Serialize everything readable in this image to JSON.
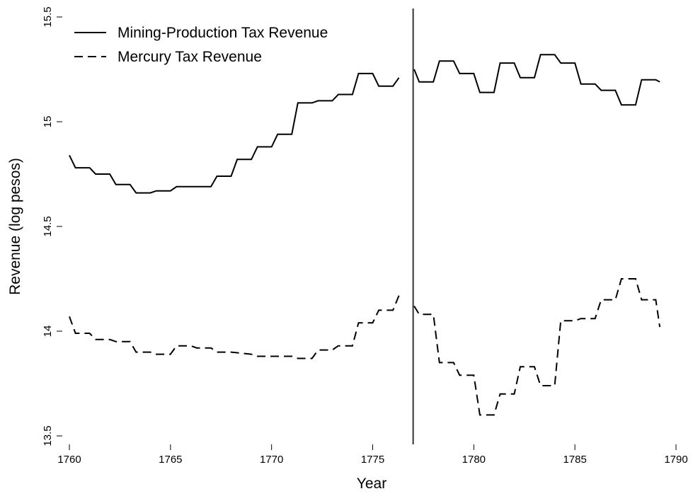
{
  "chart_data": {
    "type": "line",
    "xlabel": "Year",
    "ylabel": "Revenue (log pesos)",
    "xlim": [
      1760,
      1790
    ],
    "xticks": [
      1760,
      1765,
      1770,
      1775,
      1780,
      1785,
      1790
    ],
    "ylim": [
      13.5,
      15.5
    ],
    "yticks": [
      13.5,
      14,
      14.5,
      15,
      15.5
    ],
    "vline": 1777,
    "legend": "upper left",
    "grid": false,
    "series": [
      {
        "name": "Mining-Production Tax Revenue",
        "color": "#000000",
        "dash": "solid",
        "x": [
          1760,
          1760.3,
          1761,
          1761.3,
          1762,
          1762.3,
          1763,
          1763.3,
          1764,
          1764.3,
          1765,
          1765.3,
          1766,
          1767,
          1767.3,
          1768,
          1768.3,
          1769,
          1769.3,
          1770,
          1770.3,
          1771,
          1771.3,
          1772,
          1772.3,
          1773,
          1773.3,
          1774,
          1774.3,
          1775,
          1775.3,
          1776,
          1776.3,
          1777,
          1777.05,
          1777.3,
          1778,
          1778.3,
          1779,
          1779.3,
          1780,
          1780.3,
          1781,
          1781.3,
          1782,
          1782.3,
          1783,
          1783.3,
          1784,
          1784.3,
          1785,
          1785.3,
          1786,
          1786.3,
          1787,
          1787.3,
          1788,
          1788.3,
          1789,
          1789.2
        ],
        "values": [
          14.84,
          14.78,
          14.78,
          14.75,
          14.75,
          14.7,
          14.7,
          14.66,
          14.66,
          14.67,
          14.67,
          14.69,
          14.69,
          14.69,
          14.74,
          14.74,
          14.82,
          14.82,
          14.88,
          14.88,
          14.94,
          14.94,
          15.09,
          15.09,
          15.1,
          15.1,
          15.13,
          15.13,
          15.23,
          15.23,
          15.17,
          15.17,
          15.21,
          null,
          15.25,
          15.19,
          15.19,
          15.29,
          15.29,
          15.23,
          15.23,
          15.14,
          15.14,
          15.28,
          15.28,
          15.21,
          15.21,
          15.32,
          15.32,
          15.28,
          15.28,
          15.18,
          15.18,
          15.15,
          15.15,
          15.08,
          15.08,
          15.2,
          15.2,
          15.19
        ]
      },
      {
        "name": "Mercury Tax Revenue",
        "color": "#000000",
        "dash": "dashed",
        "x": [
          1760,
          1760.3,
          1761,
          1761.3,
          1762,
          1762.3,
          1763,
          1763.3,
          1764,
          1764.3,
          1765,
          1765.3,
          1766,
          1766.3,
          1767,
          1767.3,
          1768,
          1769,
          1769.3,
          1770,
          1771,
          1771.3,
          1772,
          1772.3,
          1773,
          1773.3,
          1774,
          1774.3,
          1775,
          1775.3,
          1776,
          1776.3,
          1777,
          1777.05,
          1777.3,
          1778,
          1778.3,
          1779,
          1779.3,
          1780,
          1780.3,
          1781,
          1781.3,
          1782,
          1782.3,
          1783,
          1783.3,
          1784,
          1784.3,
          1785,
          1785.3,
          1786,
          1786.3,
          1787,
          1787.3,
          1788,
          1788.3,
          1789,
          1789.2
        ],
        "values": [
          14.07,
          13.99,
          13.99,
          13.96,
          13.96,
          13.95,
          13.95,
          13.9,
          13.9,
          13.89,
          13.89,
          13.93,
          13.93,
          13.92,
          13.92,
          13.9,
          13.9,
          13.89,
          13.88,
          13.88,
          13.88,
          13.87,
          13.87,
          13.91,
          13.91,
          13.93,
          13.93,
          14.04,
          14.04,
          14.1,
          14.1,
          14.17,
          null,
          14.12,
          14.08,
          14.08,
          13.85,
          13.85,
          13.79,
          13.79,
          13.6,
          13.6,
          13.7,
          13.7,
          13.83,
          13.83,
          13.74,
          13.74,
          14.05,
          14.05,
          14.06,
          14.06,
          14.15,
          14.15,
          14.25,
          14.25,
          14.15,
          14.15,
          14.02
        ]
      }
    ]
  }
}
